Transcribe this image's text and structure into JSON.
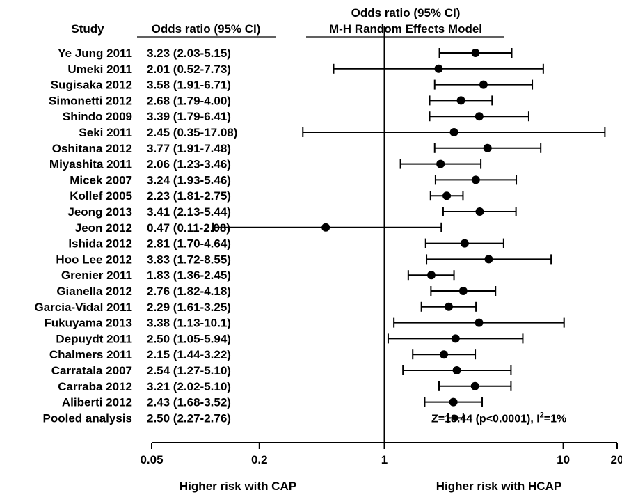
{
  "chart_data": {
    "type": "forest",
    "scale": "log",
    "xlim": [
      0.05,
      20
    ],
    "reference_line": 1,
    "x_ticks": [
      0.05,
      0.2,
      1,
      10,
      20
    ],
    "x_tick_labels": [
      "0.05",
      "0.2",
      "1",
      "10",
      "20"
    ],
    "headers": {
      "study": "Study",
      "or_text": "Odds ratio (95% CI)",
      "plot_line1": "Odds ratio (95% CI)",
      "plot_line2": "M-H Random Effects Model"
    },
    "x_side_labels": {
      "left": "Higher risk with CAP",
      "right": "Higher risk with HCAP"
    },
    "studies": [
      {
        "name": "Ye Jung 2011",
        "or": 3.23,
        "lo": 2.03,
        "hi": 5.15,
        "label": "3.23 (2.03-5.15)"
      },
      {
        "name": "Umeki 2011",
        "or": 2.01,
        "lo": 0.52,
        "hi": 7.73,
        "label": "2.01 (0.52-7.73)"
      },
      {
        "name": "Sugisaka 2012",
        "or": 3.58,
        "lo": 1.91,
        "hi": 6.71,
        "label": "3.58 (1.91-6.71)"
      },
      {
        "name": "Simonetti 2012",
        "or": 2.68,
        "lo": 1.79,
        "hi": 4.0,
        "label": "2.68 (1.79-4.00)"
      },
      {
        "name": "Shindo 2009",
        "or": 3.39,
        "lo": 1.79,
        "hi": 6.41,
        "label": "3.39 (1.79-6.41)"
      },
      {
        "name": "Seki 2011",
        "or": 2.45,
        "lo": 0.35,
        "hi": 17.08,
        "label": "2.45 (0.35-17.08)"
      },
      {
        "name": "Oshitana 2012",
        "or": 3.77,
        "lo": 1.91,
        "hi": 7.48,
        "label": "3.77 (1.91-7.48)"
      },
      {
        "name": "Miyashita 2011",
        "or": 2.06,
        "lo": 1.23,
        "hi": 3.46,
        "label": "2.06 (1.23-3.46)"
      },
      {
        "name": "Micek 2007",
        "or": 3.24,
        "lo": 1.93,
        "hi": 5.46,
        "label": "3.24 (1.93-5.46)"
      },
      {
        "name": "Kollef 2005",
        "or": 2.23,
        "lo": 1.81,
        "hi": 2.75,
        "label": "2.23 (1.81-2.75)"
      },
      {
        "name": "Jeong 2013",
        "or": 3.41,
        "lo": 2.13,
        "hi": 5.44,
        "label": "3.41 (2.13-5.44)"
      },
      {
        "name": "Jeon 2012",
        "or": 0.47,
        "lo": 0.11,
        "hi": 2.08,
        "label": "0.47 (0.11-2.08)"
      },
      {
        "name": "Ishida 2012",
        "or": 2.81,
        "lo": 1.7,
        "hi": 4.64,
        "label": "2.81 (1.70-4.64)"
      },
      {
        "name": "Hoo Lee 2012",
        "or": 3.83,
        "lo": 1.72,
        "hi": 8.55,
        "label": "3.83 (1.72-8.55)"
      },
      {
        "name": "Grenier 2011",
        "or": 1.83,
        "lo": 1.36,
        "hi": 2.45,
        "label": "1.83 (1.36-2.45)"
      },
      {
        "name": "Gianella 2012",
        "or": 2.76,
        "lo": 1.82,
        "hi": 4.18,
        "label": "2.76 (1.82-4.18)"
      },
      {
        "name": "Garcia-Vidal 2011",
        "or": 2.29,
        "lo": 1.61,
        "hi": 3.25,
        "label": "2.29 (1.61-3.25)"
      },
      {
        "name": "Fukuyama 2013",
        "or": 3.38,
        "lo": 1.13,
        "hi": 10.1,
        "label": "3.38 (1.13-10.1)"
      },
      {
        "name": "Depuydt 2011",
        "or": 2.5,
        "lo": 1.05,
        "hi": 5.94,
        "label": "2.50 (1.05-5.94)"
      },
      {
        "name": "Chalmers 2011",
        "or": 2.15,
        "lo": 1.44,
        "hi": 3.22,
        "label": "2.15 (1.44-3.22)"
      },
      {
        "name": "Carratala 2007",
        "or": 2.54,
        "lo": 1.27,
        "hi": 5.1,
        "label": "2.54 (1.27-5.10)"
      },
      {
        "name": "Carraba 2012",
        "or": 3.21,
        "lo": 2.02,
        "hi": 5.1,
        "label": "3.21 (2.02-5.10)"
      },
      {
        "name": "Aliberti 2012",
        "or": 2.43,
        "lo": 1.68,
        "hi": 3.52,
        "label": "2.43 (1.68-3.52)"
      }
    ],
    "pooled": {
      "name": "Pooled analysis",
      "or": 2.5,
      "lo": 2.27,
      "hi": 2.76,
      "label": "2.50 (2.27-2.76)",
      "stat": {
        "prefix": "Z=18.44 (p<0.0001), I",
        "sup": "2",
        "suffix": "=1%"
      }
    }
  }
}
